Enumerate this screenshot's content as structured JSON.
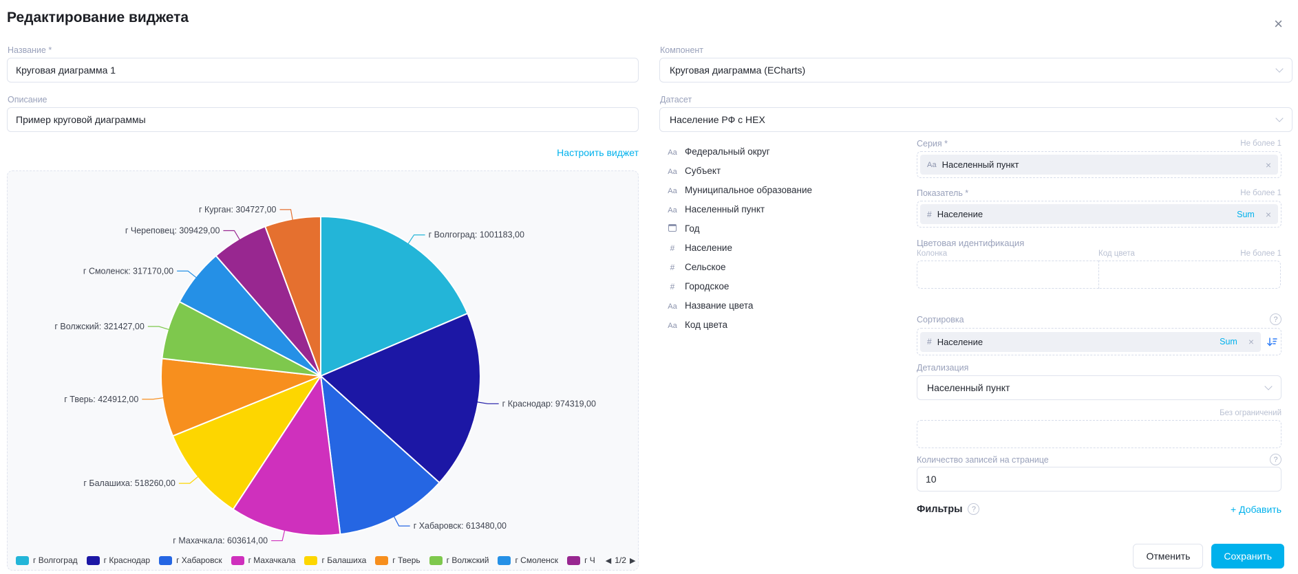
{
  "dialog": {
    "title": "Редактирование виджета",
    "close_glyph": "×"
  },
  "accent_color": "#00b1ec",
  "icons": {
    "text_glyph": "Аа",
    "number_glyph": "#"
  },
  "left": {
    "name_label": "Название *",
    "name_value": "Круговая диаграмма 1",
    "description_label": "Описание",
    "description_value": "Пример круговой диаграммы",
    "configure_link": "Настроить виджет"
  },
  "right": {
    "component_label": "Компонент",
    "component_value": "Круговая диаграмма (ECharts)",
    "dataset_label": "Датасет",
    "dataset_value": "Население РФ с HEX",
    "fields": [
      {
        "type": "text",
        "label": "Федеральный округ"
      },
      {
        "type": "text",
        "label": "Субъект"
      },
      {
        "type": "text",
        "label": "Муниципальное образование"
      },
      {
        "type": "text",
        "label": "Населенный пункт"
      },
      {
        "type": "date",
        "label": "Год"
      },
      {
        "type": "number",
        "label": "Население"
      },
      {
        "type": "number",
        "label": "Сельское"
      },
      {
        "type": "number",
        "label": "Городское"
      },
      {
        "type": "text",
        "label": "Название цвета"
      },
      {
        "type": "text",
        "label": "Код цвета"
      }
    ],
    "series": {
      "label": "Серия *",
      "limit": "Не более 1",
      "chip": "Населенный пункт",
      "remove_glyph": "×"
    },
    "measure": {
      "label": "Показатель *",
      "limit": "Не более 1",
      "chip": "Население",
      "agg": "Sum",
      "remove_glyph": "×"
    },
    "color_ident": {
      "label": "Цветовая идентификация",
      "column_label": "Колонка",
      "code_label": "Код цвета",
      "limit": "Не более 1"
    },
    "sorting": {
      "label": "Сортировка",
      "chip": "Население",
      "agg": "Sum",
      "remove_glyph": "×",
      "help_glyph": "?"
    },
    "detail": {
      "label": "Детализация",
      "value": "Населенный пункт"
    },
    "no_limit_label": "Без ограничений",
    "page_size": {
      "label": "Количество записей на странице",
      "value": "10",
      "help_glyph": "?"
    },
    "filters": {
      "label": "Фильтры",
      "help_glyph": "?",
      "add_label": "Добавить",
      "add_plus": "+"
    }
  },
  "footer": {
    "cancel_label": "Отменить",
    "save_label": "Сохранить"
  },
  "chart_data": {
    "type": "pie",
    "title": "",
    "categories": [
      "г Волгоград",
      "г Краснодар",
      "г Хабаровск",
      "г Махачкала",
      "г Балашиха",
      "г Тверь",
      "г Волжский",
      "г Смоленск",
      "г Череповец",
      "г Курган"
    ],
    "values": [
      1001183,
      974319,
      613480,
      603614,
      518260,
      424912,
      321427,
      317170,
      309429,
      304727
    ],
    "labels": [
      "г Волгоград: 1001183,00",
      "г Краснодар: 974319,00",
      "г Хабаровск: 613480,00",
      "г Махачкала: 603614,00",
      "г Балашиха: 518260,00",
      "г Тверь: 424912,00",
      "г Волжский: 321427,00",
      "г Смоленск: 317170,00",
      "г Череповец: 309429,00",
      "г Курган: 304727,00"
    ],
    "colors": [
      "#23b5d8",
      "#1c17a5",
      "#2566e3",
      "#cf30bd",
      "#fdd600",
      "#f78f1e",
      "#7ec84d",
      "#2590e6",
      "#982790",
      "#e5702f"
    ],
    "legend": {
      "position": "bottom",
      "page": "1/2",
      "prev_glyph": "◀",
      "next_glyph": "▶",
      "visible_items": [
        {
          "label": "г Волгоград",
          "color": "#23b5d8"
        },
        {
          "label": "г Краснодар",
          "color": "#1c17a5"
        },
        {
          "label": "г Хабаровск",
          "color": "#2566e3"
        },
        {
          "label": "г Махачкала",
          "color": "#cf30bd"
        },
        {
          "label": "г Балашиха",
          "color": "#fdd600"
        },
        {
          "label": "г Тверь",
          "color": "#f78f1e"
        },
        {
          "label": "г Волжский",
          "color": "#7ec84d"
        },
        {
          "label": "г Смоленск",
          "color": "#2590e6"
        },
        {
          "label": "г Ч",
          "color": "#982790"
        }
      ]
    }
  }
}
